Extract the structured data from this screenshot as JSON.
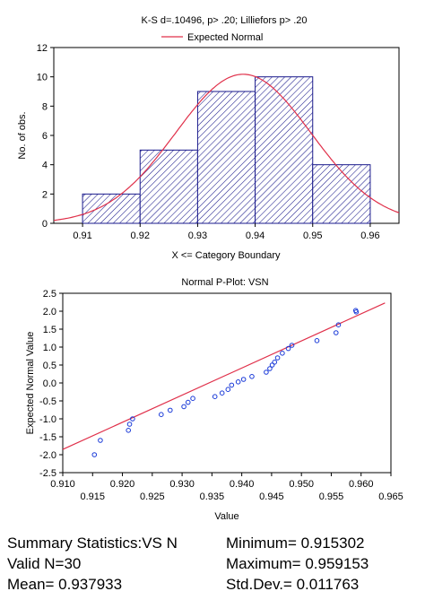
{
  "chart_data": [
    {
      "type": "bar",
      "title": "K-S d=.10496, p> .20; Lilliefors p> .20",
      "legend": {
        "entries": [
          "Expected Normal"
        ],
        "placement": "top"
      },
      "xlabel": "X <= Category Boundary",
      "ylabel": "No. of obs.",
      "xlim": [
        0.905,
        0.965
      ],
      "ylim": [
        0,
        12
      ],
      "xticks": [
        "0.91",
        "0.92",
        "0.93",
        "0.94",
        "0.95",
        "0.96"
      ],
      "yticks": [
        "0",
        "2",
        "4",
        "6",
        "8",
        "10",
        "12"
      ],
      "bins": [
        {
          "from": 0.91,
          "to": 0.92,
          "count": 2
        },
        {
          "from": 0.92,
          "to": 0.93,
          "count": 5
        },
        {
          "from": 0.93,
          "to": 0.94,
          "count": 9
        },
        {
          "from": 0.94,
          "to": 0.95,
          "count": 10
        },
        {
          "from": 0.95,
          "to": 0.96,
          "count": 4
        }
      ],
      "normal_curve": {
        "mean": 0.937933,
        "sd": 0.011763,
        "n": 30,
        "bin_width": 0.01
      },
      "colors": {
        "bars": "#1a1a8c",
        "curve": "#e0304a"
      }
    },
    {
      "type": "scatter",
      "title": "Normal P-Plot: VSN",
      "xlabel": "Value",
      "ylabel": "Expected Normal Value",
      "xlim": [
        0.91,
        0.965
      ],
      "ylim": [
        -2.5,
        2.5
      ],
      "xticks_top": [
        "0.910",
        "0.920",
        "0.930",
        "0.940",
        "0.950",
        "0.960"
      ],
      "xticks_bottom": [
        "0.915",
        "0.925",
        "0.935",
        "0.945",
        "0.955",
        "0.965"
      ],
      "yticks": [
        "-2.5",
        "-2.0",
        "-1.5",
        "-1.0",
        "-0.5",
        "0.0",
        "0.5",
        "1.0",
        "1.5",
        "2.0",
        "2.5"
      ],
      "points": [
        [
          0.9153,
          -2.0
        ],
        [
          0.9163,
          -1.6
        ],
        [
          0.921,
          -1.32
        ],
        [
          0.9212,
          -1.15
        ],
        [
          0.9217,
          -1.0
        ],
        [
          0.9265,
          -0.88
        ],
        [
          0.928,
          -0.76
        ],
        [
          0.9303,
          -0.66
        ],
        [
          0.931,
          -0.54
        ],
        [
          0.9318,
          -0.43
        ],
        [
          0.9355,
          -0.38
        ],
        [
          0.9367,
          -0.28
        ],
        [
          0.9377,
          -0.18
        ],
        [
          0.9383,
          -0.06
        ],
        [
          0.9394,
          0.03
        ],
        [
          0.9403,
          0.1
        ],
        [
          0.9417,
          0.18
        ],
        [
          0.9441,
          0.3
        ],
        [
          0.9447,
          0.4
        ],
        [
          0.9451,
          0.5
        ],
        [
          0.9455,
          0.58
        ],
        [
          0.946,
          0.7
        ],
        [
          0.9468,
          0.83
        ],
        [
          0.9478,
          0.96
        ],
        [
          0.9484,
          1.05
        ],
        [
          0.9526,
          1.18
        ],
        [
          0.9558,
          1.4
        ],
        [
          0.9562,
          1.62
        ],
        [
          0.9591,
          2.02
        ],
        [
          0.9592,
          1.98
        ]
      ],
      "reference_line": {
        "x": [
          0.905,
          0.964
        ],
        "y": [
          -2.23,
          2.23
        ]
      },
      "colors": {
        "points": "#1a3ad8",
        "line": "#e0304a"
      }
    }
  ],
  "summary": {
    "title": "Summary Statistics:VS N",
    "valid": "Valid N=30",
    "mean": "Mean= 0.937933",
    "minimum": "Minimum= 0.915302",
    "maximum": "Maximum= 0.959153",
    "stddev": "Std.Dev.= 0.011763"
  }
}
